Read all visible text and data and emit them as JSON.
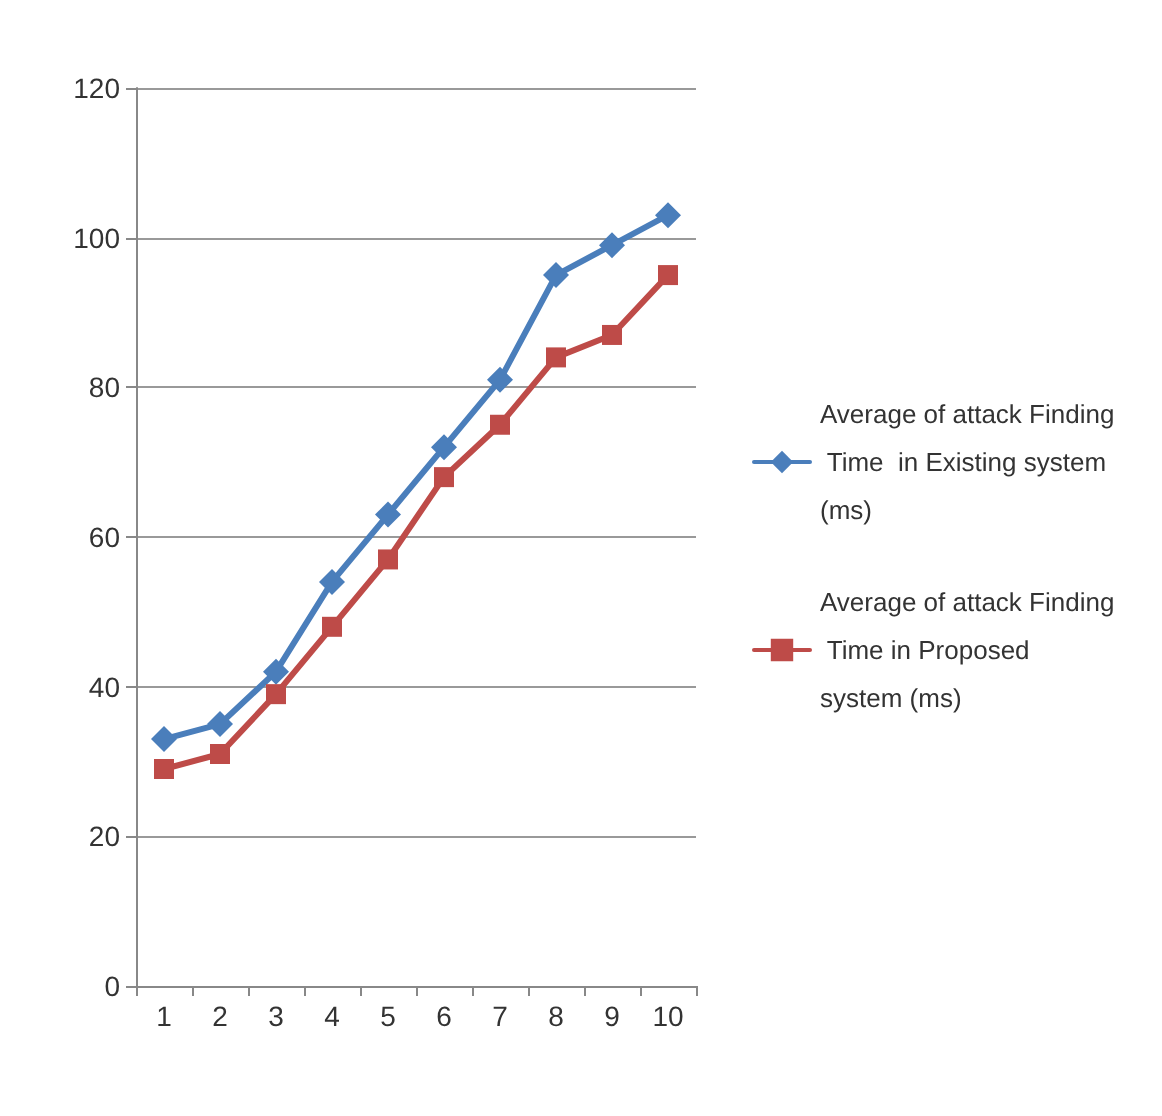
{
  "chart_data": {
    "type": "line",
    "categories": [
      "1",
      "2",
      "3",
      "4",
      "5",
      "6",
      "7",
      "8",
      "9",
      "10"
    ],
    "ylim": [
      0,
      120
    ],
    "yticks": [
      0,
      20,
      40,
      60,
      80,
      100,
      120
    ],
    "grid": "y",
    "legend": "right",
    "series": [
      {
        "name": "Average of attack Finding Time  in Existing system (ms)",
        "color": "#4a7ebb",
        "marker": "diamond",
        "values": [
          33,
          35,
          42,
          54,
          63,
          72,
          81,
          95,
          99,
          103
        ]
      },
      {
        "name": "Average of attack Finding Time in Proposed system (ms)",
        "color": "#be4b48",
        "marker": "square",
        "values": [
          29,
          31,
          39,
          48,
          57,
          68,
          75,
          84,
          87,
          95
        ]
      }
    ]
  }
}
